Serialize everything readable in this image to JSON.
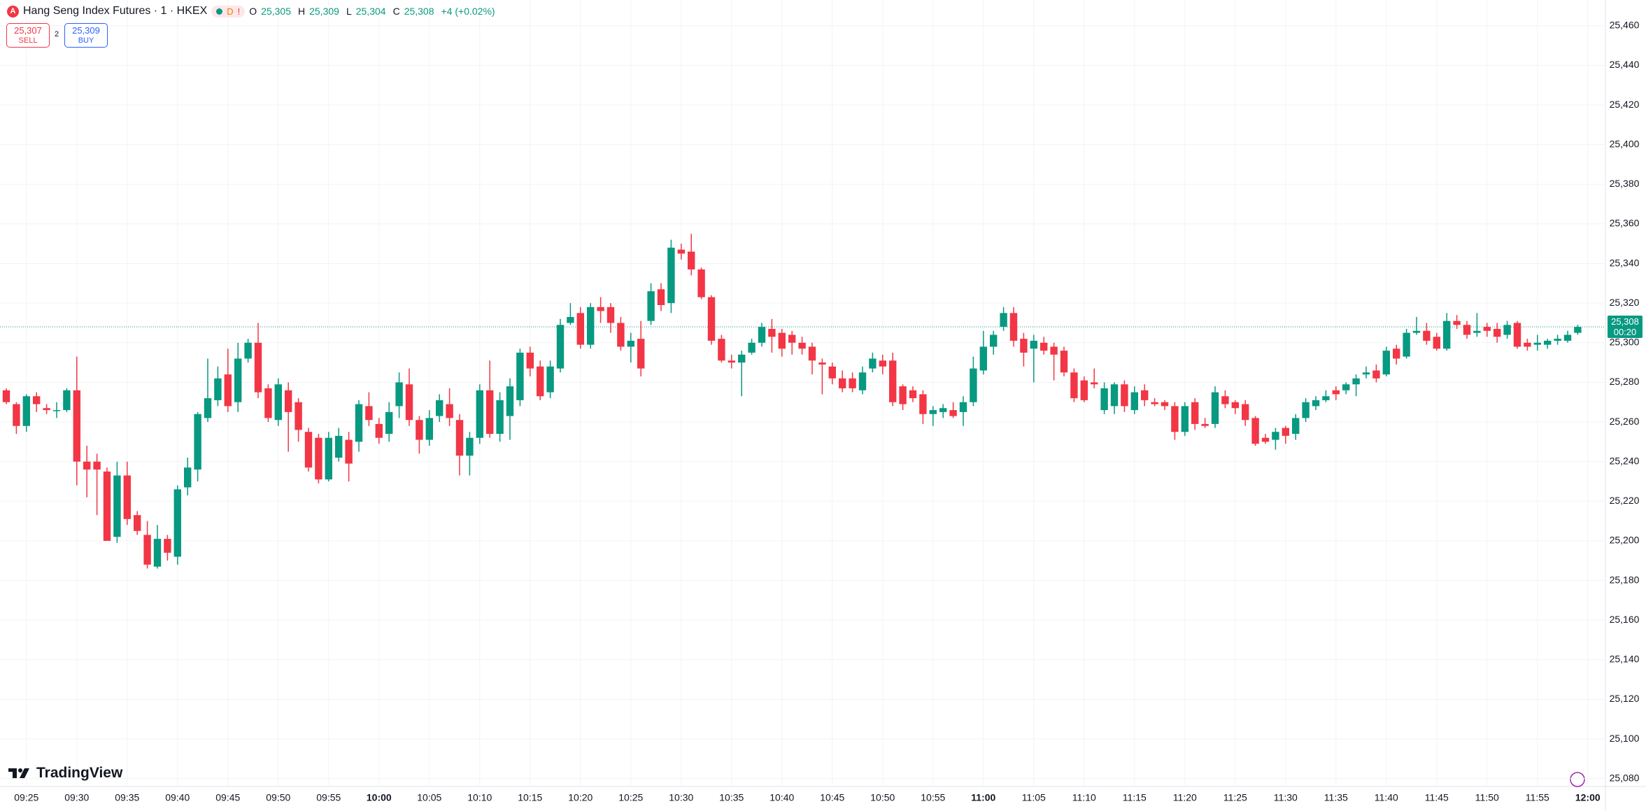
{
  "header": {
    "title": "Hang Seng Index Futures · 1 · HKEX",
    "badge": "D",
    "alert": "!",
    "ohlc": [
      {
        "key": "O",
        "value": "25,305"
      },
      {
        "key": "H",
        "value": "25,309"
      },
      {
        "key": "L",
        "value": "25,304"
      },
      {
        "key": "C",
        "value": "25,308"
      }
    ],
    "change": "+4 (+0.02%)"
  },
  "trade": {
    "sell": {
      "price": "25,307",
      "label": "SELL"
    },
    "spread": "2",
    "buy": {
      "price": "25,309",
      "label": "BUY"
    }
  },
  "brand": "TradingView",
  "chart_data": {
    "type": "candlestick",
    "up_color": "#089981",
    "down_color": "#f23645",
    "grid": true,
    "ylim": [
      25076,
      25473
    ],
    "yticks": [
      {
        "value": 25080,
        "label": "25,080"
      },
      {
        "value": 25100,
        "label": "25,100"
      },
      {
        "value": 25120,
        "label": "25,120"
      },
      {
        "value": 25140,
        "label": "25,140"
      },
      {
        "value": 25160,
        "label": "25,160"
      },
      {
        "value": 25180,
        "label": "25,180"
      },
      {
        "value": 25200,
        "label": "25,200"
      },
      {
        "value": 25220,
        "label": "25,220"
      },
      {
        "value": 25240,
        "label": "25,240"
      },
      {
        "value": 25260,
        "label": "25,260"
      },
      {
        "value": 25280,
        "label": "25,280"
      },
      {
        "value": 25300,
        "label": "25,300"
      },
      {
        "value": 25320,
        "label": "25,320"
      },
      {
        "value": 25340,
        "label": "25,340"
      },
      {
        "value": 25360,
        "label": "25,360"
      },
      {
        "value": 25380,
        "label": "25,380"
      },
      {
        "value": 25400,
        "label": "25,400"
      },
      {
        "value": 25420,
        "label": "25,420"
      },
      {
        "value": 25440,
        "label": "25,440"
      },
      {
        "value": 25460,
        "label": "25,460"
      }
    ],
    "last_price": {
      "value": 25308,
      "label": "25,308"
    },
    "countdown": "00:20",
    "categories": [
      null,
      null,
      "09:25",
      null,
      null,
      null,
      null,
      "09:30",
      null,
      null,
      null,
      null,
      "09:35",
      null,
      null,
      null,
      null,
      "09:40",
      null,
      null,
      null,
      null,
      "09:45",
      null,
      null,
      null,
      null,
      "09:50",
      null,
      null,
      null,
      null,
      "09:55",
      null,
      null,
      null,
      null,
      "10:00",
      null,
      null,
      null,
      null,
      "10:05",
      null,
      null,
      null,
      null,
      "10:10",
      null,
      null,
      null,
      null,
      "10:15",
      null,
      null,
      null,
      null,
      "10:20",
      null,
      null,
      null,
      null,
      "10:25",
      null,
      null,
      null,
      null,
      "10:30",
      null,
      null,
      null,
      null,
      "10:35",
      null,
      null,
      null,
      null,
      "10:40",
      null,
      null,
      null,
      null,
      "10:45",
      null,
      null,
      null,
      null,
      "10:50",
      null,
      null,
      null,
      null,
      "10:55",
      null,
      null,
      null,
      null,
      "11:00",
      null,
      null,
      null,
      null,
      "11:05",
      null,
      null,
      null,
      null,
      "11:10",
      null,
      null,
      null,
      null,
      "11:15",
      null,
      null,
      null,
      null,
      "11:20",
      null,
      null,
      null,
      null,
      "11:25",
      null,
      null,
      null,
      null,
      "11:30",
      null,
      null,
      null,
      null,
      "11:35",
      null,
      null,
      null,
      null,
      "11:40",
      null,
      null,
      null,
      null,
      "11:45",
      null,
      null,
      null,
      null,
      "11:50",
      null,
      null,
      null,
      null,
      "11:55",
      null,
      null,
      null,
      null,
      "12:00"
    ],
    "open": [
      25276,
      25269,
      25258,
      25273,
      25267,
      25266,
      25266,
      25276,
      25240,
      25240,
      25235,
      25202,
      25233,
      25213,
      25203,
      25187,
      25201,
      25192,
      25227,
      25236,
      25262,
      25271,
      25284,
      25270,
      25292,
      25300,
      25277,
      25261,
      25276,
      25270,
      25255,
      25252,
      25231,
      25242,
      25251,
      25250,
      25268,
      25259,
      25254,
      25268,
      25279,
      25261,
      25251,
      25263,
      25269,
      25261,
      25243,
      25252,
      25276,
      25254,
      25263,
      25271,
      25295,
      25288,
      25275,
      25287,
      25310,
      25315,
      25299,
      25318,
      25318,
      25310,
      25298,
      25302,
      25311,
      25327,
      25320,
      25347,
      25346,
      25337,
      25323,
      25302,
      25291,
      25290,
      25295,
      25300,
      25307,
      25305,
      25304,
      25300,
      25298,
      25290,
      25288,
      25282,
      25282,
      25276,
      25287,
      25291,
      25291,
      25278,
      25276,
      25274,
      25264,
      25265,
      25266,
      25265,
      25270,
      25286,
      25298,
      25308,
      25315,
      25302,
      25297,
      25300,
      25298,
      25296,
      25285,
      25281,
      25280,
      25266,
      25268,
      25279,
      25266,
      25276,
      25270,
      25270,
      25268,
      25255,
      25270,
      25259,
      25259,
      25273,
      25270,
      25269,
      25262,
      25252,
      25251,
      25257,
      25254,
      25262,
      25268,
      25271,
      25276,
      25276,
      25279,
      25284,
      25286,
      25284,
      25297,
      25293,
      25305,
      25306,
      25303,
      25297,
      25311,
      25309,
      25305,
      25308,
      25307,
      25304,
      25310,
      25300,
      25299,
      25299,
      25301,
      25301,
      25305,
      null
    ],
    "high": [
      25277,
      25270,
      25274,
      25275,
      25269,
      25270,
      25277,
      25293,
      25248,
      25244,
      25237,
      25240,
      25240,
      25215,
      25210,
      25208,
      25203,
      25228,
      25242,
      25265,
      25292,
      25288,
      25297,
      25300,
      25302,
      25310,
      25279,
      25282,
      25280,
      25272,
      25257,
      25254,
      25255,
      25257,
      25255,
      25271,
      25275,
      25262,
      25270,
      25285,
      25287,
      25263,
      25266,
      25274,
      25277,
      25264,
      25255,
      25279,
      25291,
      25275,
      25282,
      25297,
      25298,
      25291,
      25291,
      25312,
      25320,
      25318,
      25320,
      25323,
      25320,
      25313,
      25305,
      25311,
      25330,
      25330,
      25352,
      25350,
      25355,
      25338,
      25324,
      25304,
      25294,
      25296,
      25302,
      25310,
      25312,
      25307,
      25306,
      25303,
      25300,
      25292,
      25290,
      25286,
      25285,
      25288,
      25295,
      25294,
      25295,
      25279,
      25278,
      25276,
      25268,
      25269,
      25270,
      25273,
      25293,
      25306,
      25306,
      25318,
      25318,
      25305,
      25304,
      25303,
      25300,
      25298,
      25287,
      25283,
      25287,
      25280,
      25280,
      25281,
      25278,
      25279,
      25272,
      25271,
      25270,
      25270,
      25272,
      25262,
      25278,
      25276,
      25271,
      25271,
      25263,
      25254,
      25257,
      25258,
      25264,
      25272,
      25273,
      25276,
      25278,
      25280,
      25284,
      25288,
      25289,
      25298,
      25299,
      25307,
      25313,
      25310,
      25305,
      25315,
      25314,
      25311,
      25315,
      25310,
      25310,
      25311,
      25311,
      25302,
      25304,
      25302,
      25304,
      25306,
      25309,
      null
    ],
    "low": [
      25269,
      25254,
      25255,
      25265,
      25264,
      25262,
      25265,
      25228,
      25222,
      25213,
      25200,
      25199,
      25208,
      25203,
      25186,
      25186,
      25190,
      25188,
      25223,
      25230,
      25260,
      25268,
      25265,
      25265,
      25290,
      25272,
      25260,
      25258,
      25245,
      25250,
      25235,
      25229,
      25230,
      25240,
      25230,
      25245,
      25258,
      25249,
      25250,
      25262,
      25258,
      25244,
      25248,
      25260,
      25258,
      25233,
      25233,
      25249,
      25252,
      25250,
      25251,
      25268,
      25283,
      25271,
      25272,
      25285,
      25309,
      25297,
      25297,
      25310,
      25305,
      25296,
      25290,
      25283,
      25309,
      25316,
      25315,
      25342,
      25334,
      25322,
      25299,
      25290,
      25287,
      25273,
      25294,
      25298,
      25295,
      25293,
      25294,
      25294,
      25284,
      25274,
      25279,
      25275,
      25275,
      25274,
      25285,
      25284,
      25268,
      25266,
      25270,
      25259,
      25258,
      25262,
      25262,
      25258,
      25268,
      25284,
      25294,
      25306,
      25298,
      25288,
      25280,
      25294,
      25281,
      25283,
      25270,
      25270,
      25277,
      25264,
      25264,
      25265,
      25264,
      25268,
      25268,
      25266,
      25251,
      25253,
      25256,
      25257,
      25257,
      25267,
      25264,
      25258,
      25248,
      25249,
      25246,
      25249,
      25251,
      25260,
      25266,
      25270,
      25271,
      25274,
      25273,
      25282,
      25280,
      25283,
      25289,
      25292,
      25304,
      25299,
      25296,
      25296,
      25307,
      25302,
      25303,
      25303,
      25300,
      25302,
      25297,
      25296,
      25296,
      25297,
      25299,
      25300,
      25304,
      null
    ],
    "close": [
      25270,
      25258,
      25273,
      25269,
      25266,
      25266,
      25276,
      25240,
      25236,
      25236,
      25200,
      25233,
      25211,
      25205,
      25188,
      25201,
      25194,
      25226,
      25237,
      25264,
      25272,
      25282,
      25268,
      25292,
      25300,
      25275,
      25262,
      25279,
      25265,
      25256,
      25237,
      25231,
      25252,
      25253,
      25239,
      25269,
      25261,
      25252,
      25265,
      25280,
      25261,
      25251,
      25262,
      25271,
      25262,
      25243,
      25252,
      25276,
      25254,
      25271,
      25278,
      25295,
      25287,
      25273,
      25288,
      25309,
      25313,
      25299,
      25318,
      25316,
      25310,
      25298,
      25301,
      25287,
      25326,
      25319,
      25348,
      25345,
      25337,
      25323,
      25301,
      25291,
      25290,
      25294,
      25300,
      25308,
      25303,
      25297,
      25300,
      25297,
      25291,
      25289,
      25282,
      25277,
      25277,
      25285,
      25292,
      25288,
      25270,
      25269,
      25272,
      25264,
      25266,
      25267,
      25263,
      25270,
      25287,
      25298,
      25304,
      25315,
      25301,
      25295,
      25301,
      25296,
      25294,
      25285,
      25272,
      25271,
      25279,
      25277,
      25279,
      25268,
      25275,
      25271,
      25269,
      25268,
      25255,
      25268,
      25259,
      25258,
      25275,
      25269,
      25267,
      25261,
      25249,
      25250,
      25255,
      25253,
      25262,
      25270,
      25271,
      25273,
      25274,
      25279,
      25282,
      25285,
      25282,
      25296,
      25292,
      25305,
      25306,
      25301,
      25297,
      25311,
      25309,
      25304,
      25306,
      25306,
      25303,
      25309,
      25298,
      25298,
      25300,
      25301,
      25302,
      25304,
      25308,
      null
    ]
  }
}
